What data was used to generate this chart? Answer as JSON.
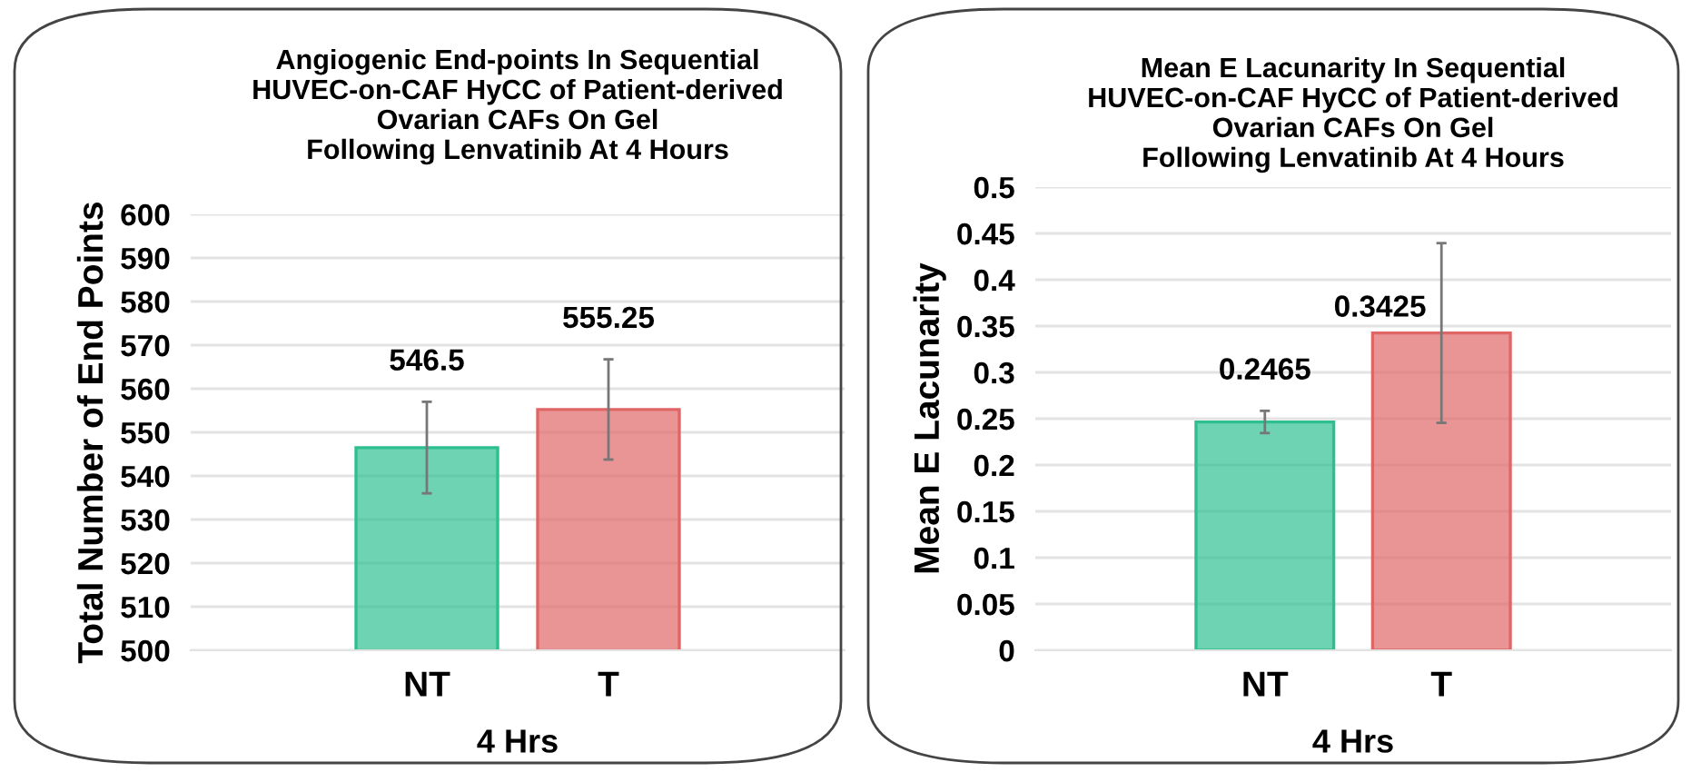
{
  "chart_data": [
    {
      "type": "bar",
      "title": "Angiogenic End-points In Sequential\nHUVEC-on-CAF HyCC of Patient-derived\nOvarian CAFs On Gel\nFollowing Lenvatinib At 4 Hours",
      "ylabel": "Total Number of End Points",
      "xlabel": "4 Hrs",
      "categories": [
        "NT",
        "T"
      ],
      "values": [
        546.5,
        555.25
      ],
      "colors": [
        "#2dbf8f",
        "#e06666"
      ],
      "errors": [
        10.5,
        11.5
      ],
      "ylim": [
        500,
        600
      ],
      "yticks": [
        500,
        510,
        520,
        530,
        540,
        550,
        560,
        570,
        580,
        590,
        600
      ],
      "grid": "y",
      "data_labels": true
    },
    {
      "type": "bar",
      "title": "Mean E Lacunarity In Sequential\nHUVEC-on-CAF HyCC of Patient-derived\nOvarian CAFs On Gel\nFollowing Lenvatinib At 4 Hours",
      "ylabel": "Mean E Lacunarity",
      "xlabel": "4 Hrs",
      "categories": [
        "NT",
        "T"
      ],
      "values": [
        0.2465,
        0.3425
      ],
      "colors": [
        "#2dbf8f",
        "#e06666"
      ],
      "errors": [
        0.012,
        0.097
      ],
      "ylim": [
        0,
        0.5
      ],
      "yticks": [
        0,
        0.05,
        0.1,
        0.15,
        0.2,
        0.25,
        0.3,
        0.35,
        0.4,
        0.45,
        0.5
      ],
      "grid": "y",
      "data_labels": true
    }
  ]
}
